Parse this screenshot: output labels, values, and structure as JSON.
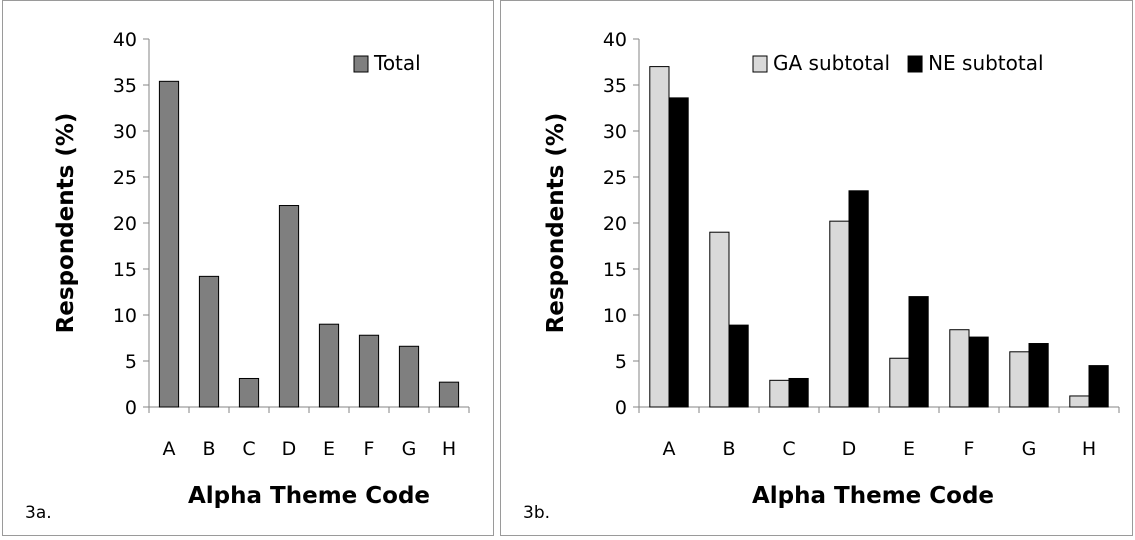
{
  "chart_data": [
    {
      "type": "bar",
      "panel_label": "3a.",
      "title": "",
      "xlabel": "Alpha Theme Code",
      "ylabel": "Respondents (%)",
      "ylim": [
        0,
        40
      ],
      "yticks": [
        0,
        5,
        10,
        15,
        20,
        25,
        30,
        35,
        40
      ],
      "categories": [
        "A",
        "B",
        "C",
        "D",
        "E",
        "F",
        "G",
        "H"
      ],
      "series": [
        {
          "name": "Total",
          "color": "#7f7f7f",
          "values": [
            35.4,
            14.2,
            3.1,
            21.9,
            9.0,
            7.8,
            6.6,
            2.7
          ]
        }
      ],
      "legend": "top-right",
      "grid": false
    },
    {
      "type": "bar",
      "panel_label": "3b.",
      "title": "",
      "xlabel": "Alpha Theme Code",
      "ylabel": "Respondents (%)",
      "ylim": [
        0,
        40
      ],
      "yticks": [
        0,
        5,
        10,
        15,
        20,
        25,
        30,
        35,
        40
      ],
      "categories": [
        "A",
        "B",
        "C",
        "D",
        "E",
        "F",
        "G",
        "H"
      ],
      "series": [
        {
          "name": "GA subtotal",
          "color": "#d9d9d9",
          "values": [
            37.0,
            19.0,
            2.9,
            20.2,
            5.3,
            8.4,
            6.0,
            1.2
          ]
        },
        {
          "name": "NE subtotal",
          "color": "#000000",
          "values": [
            33.6,
            8.9,
            3.1,
            23.5,
            12.0,
            7.6,
            6.9,
            4.5
          ]
        }
      ],
      "legend": "top-right",
      "grid": false
    }
  ]
}
